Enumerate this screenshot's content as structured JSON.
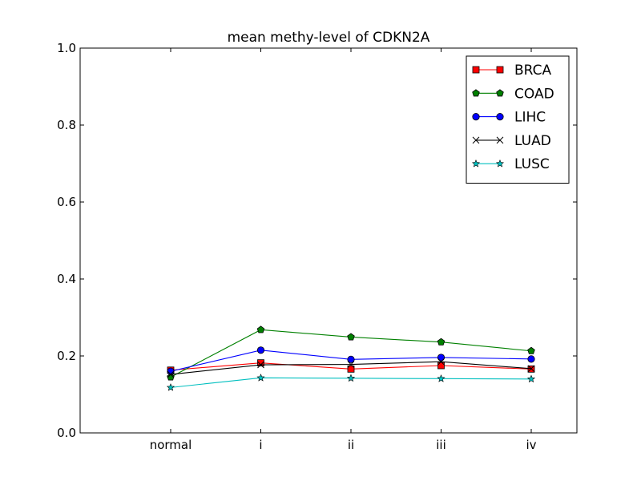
{
  "chart_data": {
    "type": "line",
    "title": "mean methy-level of CDKN2A",
    "xlabel": "",
    "ylabel": "",
    "categories": [
      "normal",
      "i",
      "ii",
      "iii",
      "iv"
    ],
    "ylim": [
      0.0,
      1.0
    ],
    "yticks": [
      "0.0",
      "0.2",
      "0.4",
      "0.6",
      "0.8",
      "1.0"
    ],
    "grid": false,
    "legend_position": "top-right",
    "series": [
      {
        "name": "BRCA",
        "color": "#ff0000",
        "marker": "square",
        "values": [
          0.163,
          0.182,
          0.166,
          0.175,
          0.166
        ]
      },
      {
        "name": "COAD",
        "color": "#008000",
        "marker": "pentagon",
        "values": [
          0.145,
          0.268,
          0.249,
          0.236,
          0.213
        ]
      },
      {
        "name": "LIHC",
        "color": "#0000ff",
        "marker": "circle",
        "values": [
          0.16,
          0.215,
          0.191,
          0.196,
          0.192
        ]
      },
      {
        "name": "LUAD",
        "color": "#000000",
        "marker": "x",
        "values": [
          0.152,
          0.177,
          0.178,
          0.185,
          0.167
        ]
      },
      {
        "name": "LUSC",
        "color": "#00bfbf",
        "marker": "star",
        "values": [
          0.118,
          0.143,
          0.142,
          0.141,
          0.14
        ]
      }
    ]
  }
}
